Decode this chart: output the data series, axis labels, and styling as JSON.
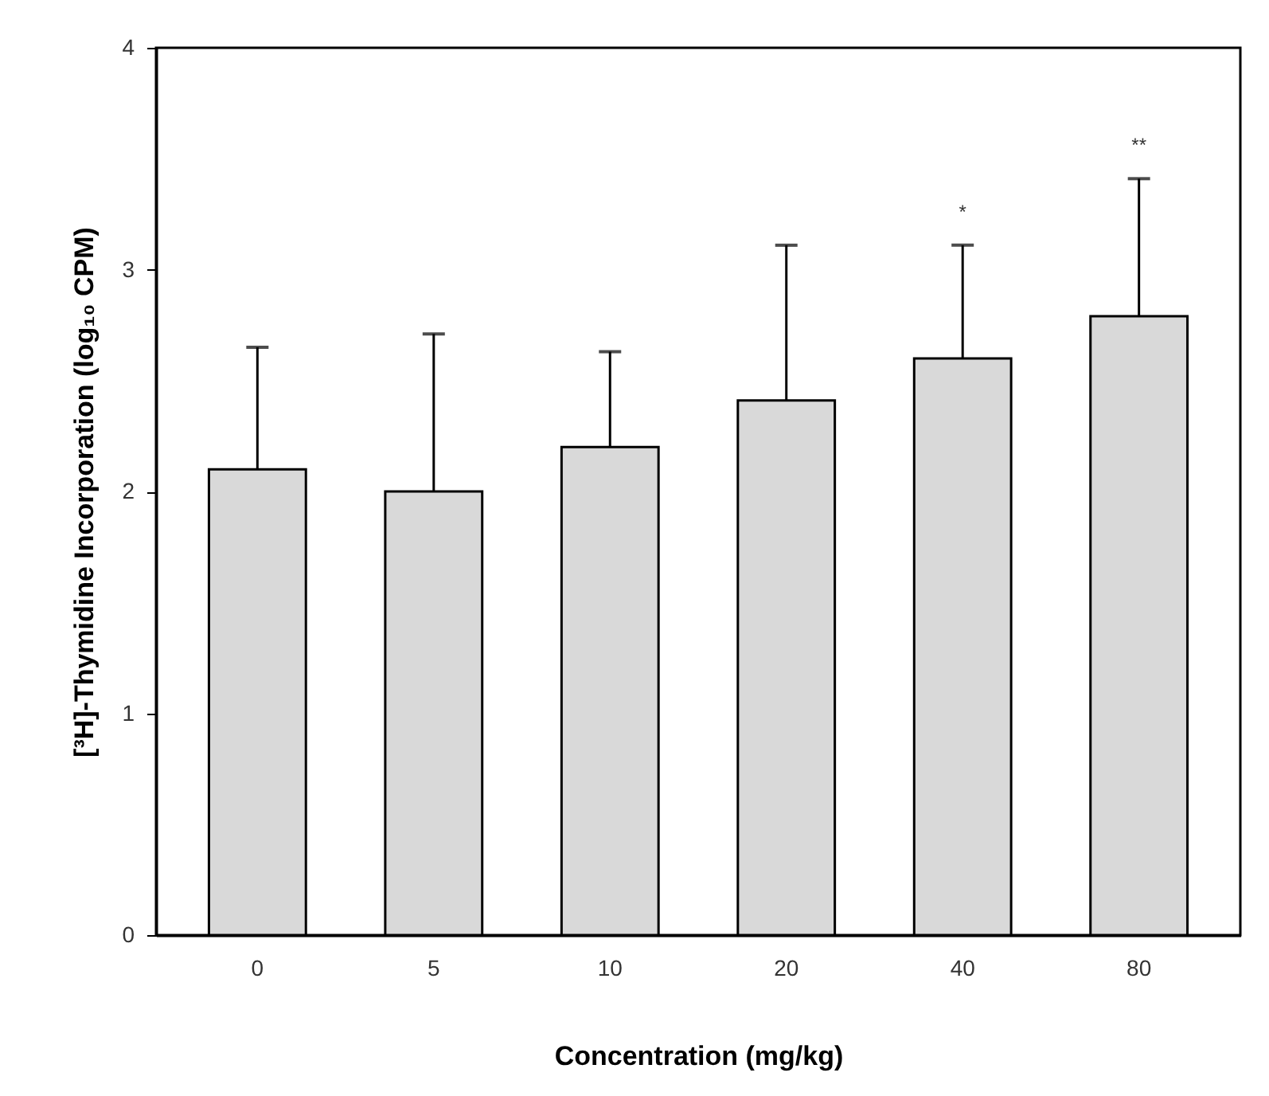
{
  "chart_data": {
    "type": "bar",
    "xlabel": "Concentration (mg/kg)",
    "ylabel": "[³H]-Thymidine Incorporation (log₁₀ CPM)",
    "categories": [
      "0",
      "5",
      "10",
      "20",
      "40",
      "80"
    ],
    "values": [
      2.1,
      2.0,
      2.2,
      2.41,
      2.6,
      2.79
    ],
    "errors": [
      [
        2.1,
        2.65
      ],
      [
        2.0,
        2.71
      ],
      [
        2.2,
        2.63
      ],
      [
        2.41,
        3.11
      ],
      [
        2.6,
        3.11
      ],
      [
        2.79,
        3.41
      ]
    ],
    "color": "#d9d9d9",
    "ylim": [
      0,
      4
    ],
    "yticks": [
      0,
      1,
      2,
      3,
      4
    ],
    "annotations": [
      "*",
      "**"
    ]
  }
}
